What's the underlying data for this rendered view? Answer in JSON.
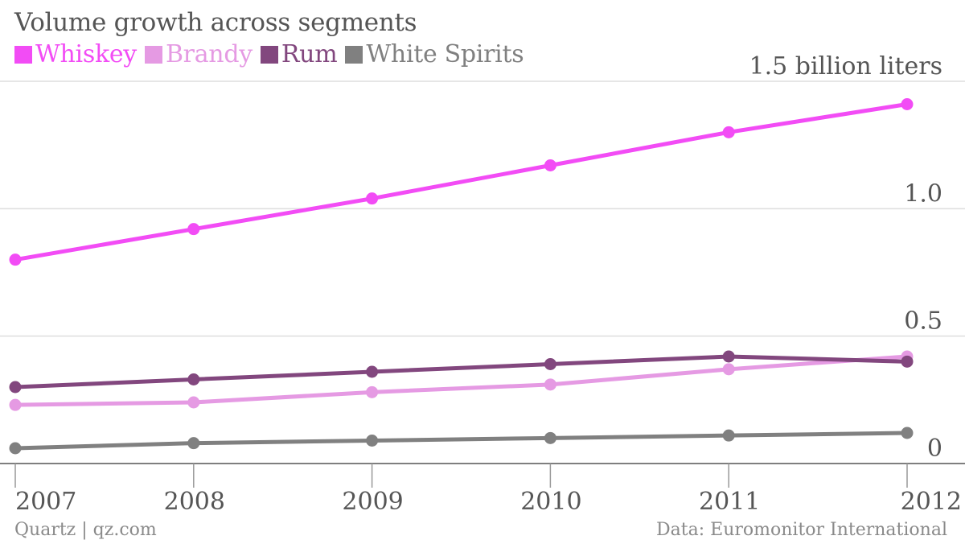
{
  "header": {
    "title": "Volume growth across segments"
  },
  "footer": {
    "source": "Quartz | qz.com",
    "data_credit": "Data: Euromonitor International"
  },
  "chart_data": {
    "type": "line",
    "title": "Volume growth across segments",
    "unit_label": "1.5 billion liters",
    "x": [
      2007,
      2008,
      2009,
      2010,
      2011,
      2012
    ],
    "x_tick_labels": [
      "2007",
      "2008",
      "2009",
      "2010",
      "2011",
      "2012"
    ],
    "ylim": [
      0,
      1.5
    ],
    "y_ticks": [
      0,
      0.5,
      1.0,
      1.5
    ],
    "y_tick_labels": [
      "0",
      "0.5",
      "1.0",
      "1.5 billion liters"
    ],
    "grid": true,
    "legend": "top-left",
    "series": [
      {
        "name": "Whiskey",
        "color": "#f24cf5",
        "values": [
          0.8,
          0.92,
          1.04,
          1.17,
          1.3,
          1.41
        ]
      },
      {
        "name": "Brandy",
        "color": "#e59ae3",
        "values": [
          0.23,
          0.24,
          0.28,
          0.31,
          0.37,
          0.42
        ]
      },
      {
        "name": "Rum",
        "color": "#82477e",
        "values": [
          0.3,
          0.33,
          0.36,
          0.39,
          0.42,
          0.4
        ]
      },
      {
        "name": "White Spirits",
        "color": "#808080",
        "values": [
          0.06,
          0.08,
          0.09,
          0.1,
          0.11,
          0.12
        ]
      }
    ]
  }
}
